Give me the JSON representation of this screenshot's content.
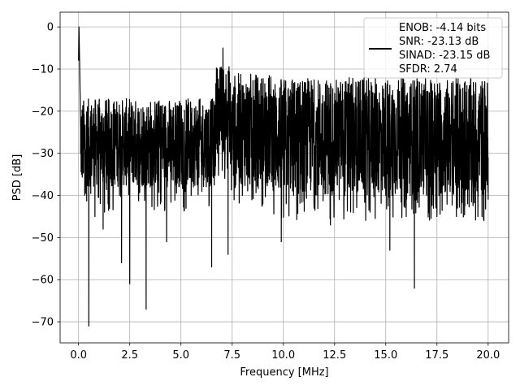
{
  "chart_data": {
    "type": "line",
    "title": "",
    "xlabel": "Frequency [MHz]",
    "ylabel": "PSD [dB]",
    "xlim": [
      -0.9,
      21.0
    ],
    "ylim": [
      -75,
      3.5
    ],
    "xticks": [
      0.0,
      2.5,
      5.0,
      7.5,
      10.0,
      12.5,
      15.0,
      17.5,
      20.0
    ],
    "xtick_labels": [
      "0.0",
      "2.5",
      "5.0",
      "7.5",
      "10.0",
      "12.5",
      "15.0",
      "17.5",
      "20.0"
    ],
    "yticks": [
      0,
      -10,
      -20,
      -30,
      -40,
      -50,
      -60,
      -70
    ],
    "ytick_labels": [
      "0",
      "−10",
      "−20",
      "−30",
      "−40",
      "−50",
      "−60",
      "−70"
    ],
    "grid": true,
    "legend_position": "top-right",
    "series_color": "#000000",
    "legend": [
      "ENOB: -4.14 bits",
      "SNR: -23.13 dB",
      "SINAD: -23.15 dB",
      "SFDR: 2.74"
    ],
    "series": [
      {
        "name": "ENOB: -4.14 bits\nSNR: -23.13 dB\nSINAD: -23.15 dB\nSFDR: 2.74",
        "description": "Noisy spectrum; noise band roughly -40 to -15 dB",
        "x": [
          0.0,
          0.02,
          0.05,
          0.1,
          0.15,
          0.2,
          0.3,
          0.4,
          0.5,
          0.6,
          0.8,
          1.0,
          1.2,
          1.5,
          2.0,
          2.1,
          2.4,
          2.5,
          3.0,
          3.3,
          3.5,
          4.0,
          4.3,
          5.0,
          5.5,
          6.0,
          6.5,
          6.9,
          7.0,
          7.05,
          7.1,
          7.3,
          7.5,
          8.0,
          8.5,
          9.0,
          9.5,
          9.9,
          10.0,
          10.5,
          11.0,
          11.5,
          12.0,
          12.3,
          12.5,
          13.0,
          13.5,
          14.0,
          14.5,
          15.0,
          15.2,
          15.5,
          16.0,
          16.4,
          16.5,
          17.0,
          17.5,
          18.0,
          18.5,
          19.0,
          19.5,
          19.7,
          20.0
        ],
        "y": [
          -8,
          0,
          -8,
          -30,
          -35,
          -25,
          -40,
          -32,
          -71,
          -20,
          -45,
          -30,
          -48,
          -35,
          -40,
          -56,
          -30,
          -61,
          -35,
          -67,
          -38,
          -42,
          -51,
          -30,
          -40,
          -35,
          -57,
          -28,
          -10,
          -5,
          -20,
          -54,
          -25,
          -40,
          -35,
          -42,
          -38,
          -51,
          -25,
          -40,
          -35,
          -43,
          -30,
          -47,
          -25,
          -40,
          -35,
          -40,
          -38,
          -40,
          -53,
          -35,
          -45,
          -62,
          -25,
          -40,
          -45,
          -35,
          -43,
          -42,
          -45,
          -45,
          -41
        ]
      }
    ]
  }
}
